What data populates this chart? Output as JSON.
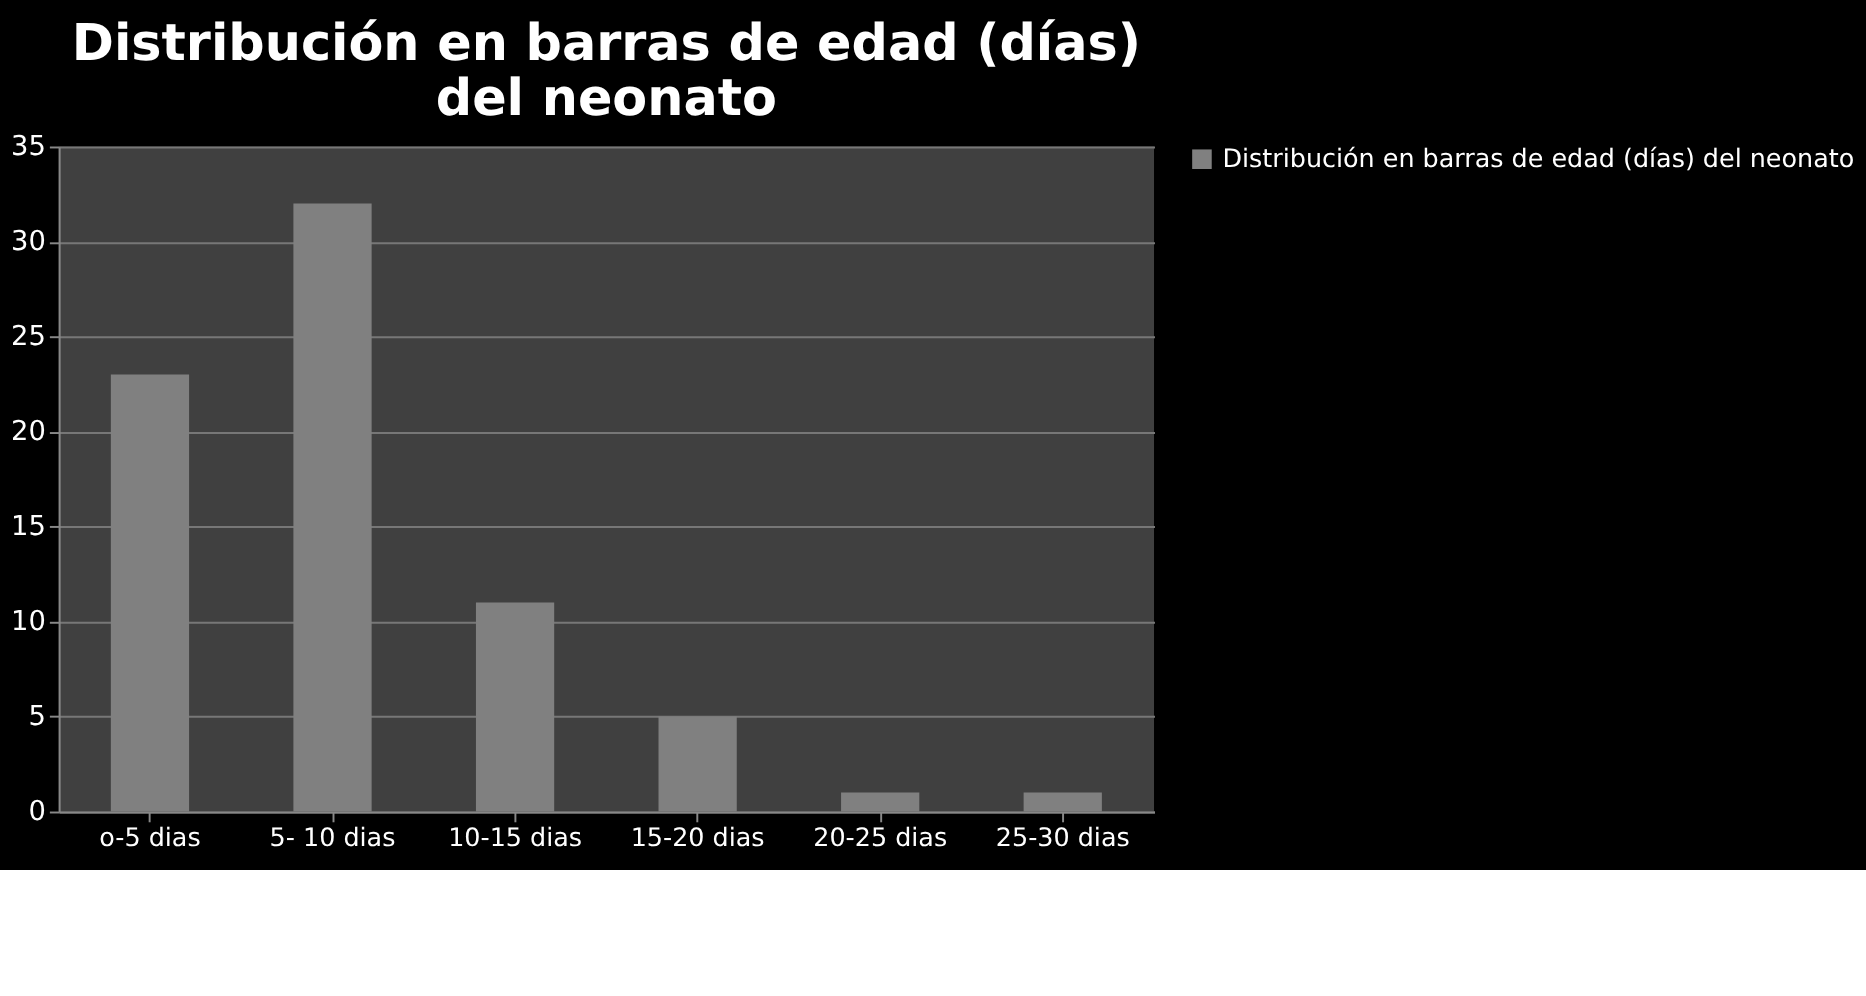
{
  "chart_data": {
    "type": "bar",
    "title": "Distribución en barras de edad (días) del neonato",
    "categories": [
      "o-5 dias",
      "5- 10 dias",
      "10-15 dias",
      "15-20 dias",
      "20-25 dias",
      "25-30 dias"
    ],
    "series": [
      {
        "name": "Distribución en barras de edad (días) del neonato",
        "color": "#808080",
        "values": [
          23,
          32,
          11,
          5,
          1,
          1
        ]
      }
    ],
    "ylim": [
      0,
      35
    ],
    "yticks": [
      0,
      5,
      10,
      15,
      20,
      25,
      30,
      35
    ],
    "grid": "y",
    "legend": "right"
  }
}
